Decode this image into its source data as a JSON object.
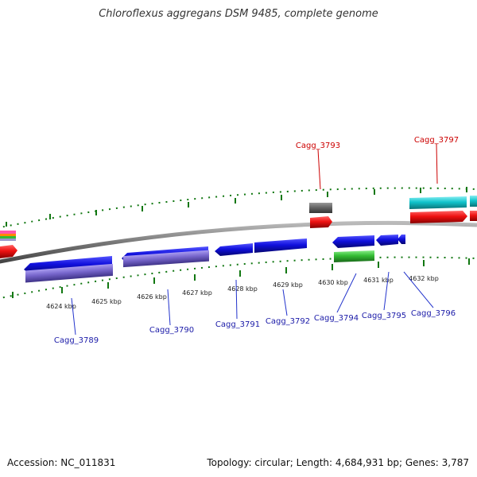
{
  "header": {
    "title": "Chloroflexus aggregans DSM 9485, complete genome"
  },
  "footer": {
    "accession": "Accession: NC_011831",
    "stats": "Topology: circular; Length: 4,684,931 bp; Genes: 3,787"
  },
  "colors": {
    "blue_gene": "#1010dd",
    "lavender_gene": "#7766cc",
    "red_gene": "#ee1111",
    "cyan_gene": "#11c4cc",
    "green_gene": "#33bb33",
    "gray_gene": "#666666",
    "backbone": "#777777",
    "tick": "#117711",
    "blue_label": "#1a1aa8",
    "red_label": "#cc0000"
  },
  "ticks": [
    {
      "label": "4624 kbp"
    },
    {
      "label": "4625 kbp"
    },
    {
      "label": "4626 kbp"
    },
    {
      "label": "4627 kbp"
    },
    {
      "label": "4628 kbp"
    },
    {
      "label": "4629 kbp"
    },
    {
      "label": "4630 kbp"
    },
    {
      "label": "4631 kbp"
    },
    {
      "label": "4632 kbp"
    }
  ],
  "gene_labels_bottom": [
    {
      "name": "Cagg_3789"
    },
    {
      "name": "Cagg_3790"
    },
    {
      "name": "Cagg_3791"
    },
    {
      "name": "Cagg_3792"
    },
    {
      "name": "Cagg_3794"
    },
    {
      "name": "Cagg_3795"
    },
    {
      "name": "Cagg_3796"
    }
  ],
  "gene_labels_top": [
    {
      "name": "Cagg_3793"
    },
    {
      "name": "Cagg_3797"
    }
  ]
}
